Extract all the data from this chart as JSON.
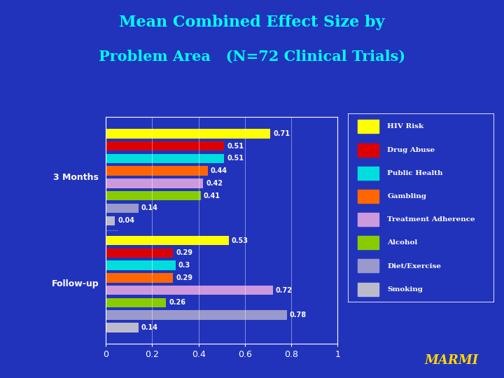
{
  "title_line1": "Mean Combined Effect Size by",
  "title_line2": "Problem Area   (N=72 Clinical Trials)",
  "title_color": "#00FFFF",
  "background_color": "#2233BB",
  "marmi_color": "#FFD700",
  "values_3months": [
    0.71,
    0.51,
    0.51,
    0.44,
    0.42,
    0.41,
    0.14,
    0.04
  ],
  "values_followup": [
    0.53,
    0.29,
    0.3,
    0.29,
    0.72,
    0.26,
    0.78,
    0.14
  ],
  "bar_colors": [
    "#FFFF00",
    "#DD0000",
    "#00DDDD",
    "#FF6600",
    "#CC99DD",
    "#88CC00",
    "#9999CC",
    "#BBBBCC"
  ],
  "legend_labels": [
    "HIV Risk",
    "Drug Abuse",
    "Public Health",
    "Gambling",
    "Treatment Adherence",
    "Alcohol",
    "Diet/Exercise",
    "Smoking"
  ],
  "label_3months": "3 Months",
  "label_followup": "Follow-up",
  "value_labels_3months": [
    "0.71",
    "0.51",
    "0.51",
    "0.44",
    "0.42",
    "0.41",
    "0.14",
    "0.04"
  ],
  "value_labels_followup": [
    "0.53",
    "0.29",
    "0.3",
    "0.29",
    "0.72",
    "0.26",
    "0.78",
    "0.14"
  ]
}
